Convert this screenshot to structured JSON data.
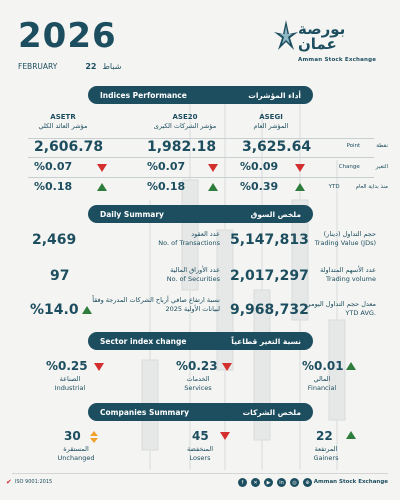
{
  "header": {
    "year": "2026",
    "month": "FEBRUARY",
    "day": "22",
    "month_ar": "شباط",
    "logo_ar": "بورصة عمان",
    "logo_en": "Amman Stock Exchange"
  },
  "indices": {
    "title_en": "Indices Performance",
    "title_ar": "أداء المؤشرات",
    "columns": [
      {
        "code": "ASETR",
        "name_ar": "مؤشر العائد الكلي",
        "value": "2,606.78",
        "change": "%0.07",
        "ytd": "%0.18"
      },
      {
        "code": "ASE20",
        "name_ar": "مؤشر الشركات الكبرى",
        "value": "1,982.18",
        "change": "%0.07",
        "ytd": "%0.18"
      },
      {
        "code": "ASEGI",
        "name_ar": "المؤشر العام",
        "value": "3,625.64",
        "change": "%0.09",
        "ytd": "%0.39"
      }
    ],
    "row_labels": {
      "point_en": "Point",
      "point_ar": "نقطة",
      "change_en": "Change",
      "change_ar": "التغير",
      "ytd_en": "YTD",
      "ytd_ar": "منذ بداية العام"
    }
  },
  "daily": {
    "title_en": "Daily Summary",
    "title_ar": "ملخص السوق",
    "transactions": {
      "value": "2,469",
      "label_ar": "عدد العقود",
      "label_en": "No. of Transactions"
    },
    "trading_value": {
      "value": "5,147,813",
      "label_ar": "حجم التداول (دينار)",
      "label_en": "Trading Value (JDs)"
    },
    "securities": {
      "value": "97",
      "label_ar": "عدد الأوراق المالية",
      "label_en": "No. of Securities"
    },
    "trading_volume": {
      "value": "2,017,297",
      "label_ar": "عدد الأسهم المتداولة",
      "label_en": "Trading volume"
    },
    "net_profit": {
      "value": "%14.0",
      "label_ar": "نسبة ارتفاع صافي أرباح الشركات المدرجة وفقاً لبيانات الأولية 2025"
    },
    "ytd_avg": {
      "value": "9,968,732",
      "label_ar": "معدل حجم التداول اليومي",
      "label_en": "YTD AVG."
    }
  },
  "sector": {
    "title_en": "Sector index change",
    "title_ar": "نسبة التغير قطاعياً",
    "items": [
      {
        "pct": "%0.25",
        "name_ar": "الصناعة",
        "name_en": "Industrial",
        "direction": "down"
      },
      {
        "pct": "%0.23",
        "name_ar": "الخدمات",
        "name_en": "Services",
        "direction": "down"
      },
      {
        "pct": "%0.01",
        "name_ar": "المالي",
        "name_en": "Financial",
        "direction": "up"
      }
    ]
  },
  "companies": {
    "title_en": "Companies Summary",
    "title_ar": "ملخص الشركات",
    "items": [
      {
        "count": "30",
        "name_ar": "المستقرة",
        "name_en": "Unchanged",
        "direction": "flat"
      },
      {
        "count": "45",
        "name_ar": "المنخفضة",
        "name_en": "Losers",
        "direction": "down"
      },
      {
        "count": "22",
        "name_ar": "المرتفعة",
        "name_en": "Gainers",
        "direction": "up"
      }
    ]
  },
  "footer": {
    "iso": "ISO 9001:2015",
    "name": "Amman Stock Exchange",
    "social_icons": [
      "facebook-icon",
      "x-icon",
      "youtube-icon",
      "linkedin-icon",
      "instagram-icon",
      "web-icon"
    ]
  },
  "colors": {
    "primary": "#1d4e5f",
    "up": "#2e7d3c",
    "down": "#d32f2f",
    "flat": "#f2a12e",
    "background": "#f4f4f2"
  }
}
